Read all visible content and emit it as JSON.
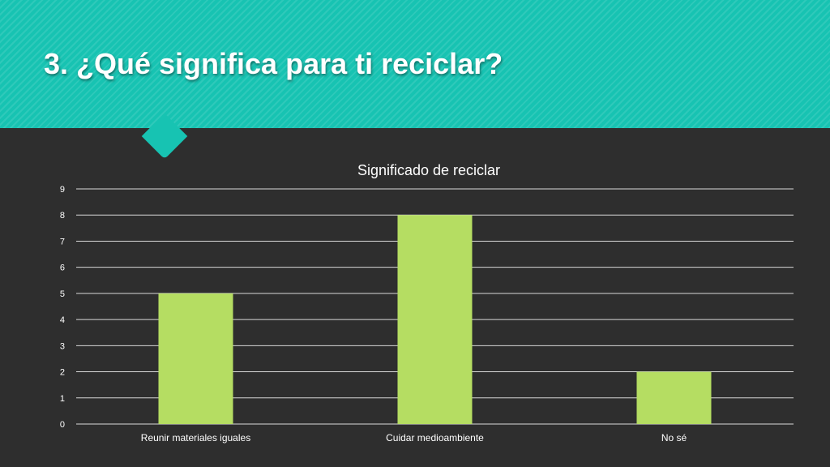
{
  "slide": {
    "title": "3. ¿Qué significa para ti reciclar?"
  },
  "colors": {
    "header": "#17c3b2",
    "background": "#2e2e2e",
    "bar": "#b5dd62",
    "grid": "#d9d9d9",
    "text": "#ffffff"
  },
  "chart_data": {
    "type": "bar",
    "title": "Significado de reciclar",
    "categories": [
      "Reunir materiales iguales",
      "Cuidar medioambiente",
      "No sé"
    ],
    "values": [
      5,
      8,
      2
    ],
    "yticks": [
      "0",
      "1",
      "2",
      "3",
      "4",
      "5",
      "6",
      "7",
      "8",
      "9"
    ],
    "ylim": [
      0,
      9
    ],
    "grid": true,
    "legend": "none"
  }
}
